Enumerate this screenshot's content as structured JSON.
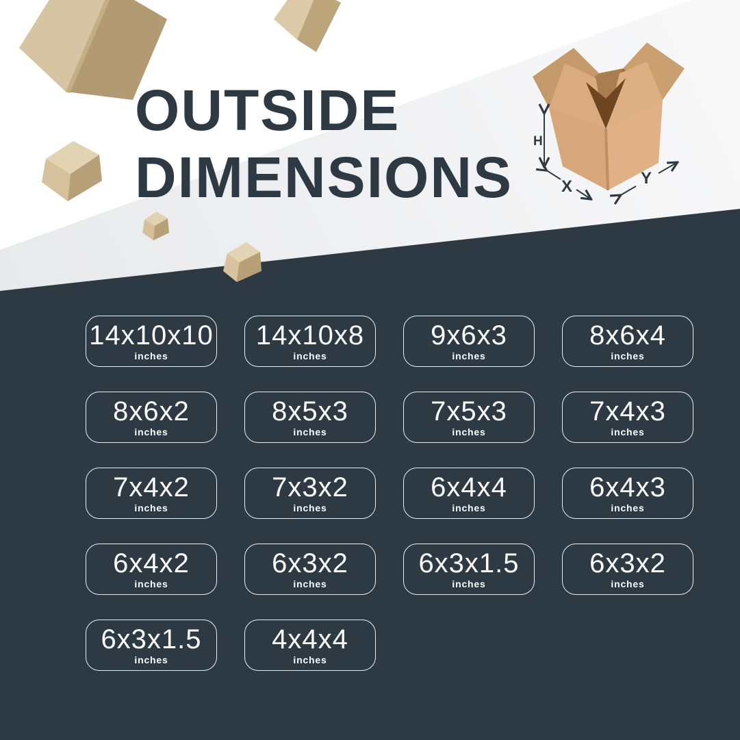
{
  "title": {
    "line1": "OUTSIDE",
    "line2": "DIMENSIONS"
  },
  "diagram": {
    "height_label": "H",
    "width_label": "X",
    "depth_label": "Y"
  },
  "sizes": [
    {
      "dims": "14x10x10",
      "unit": "inches"
    },
    {
      "dims": "14x10x8",
      "unit": "inches"
    },
    {
      "dims": "9x6x3",
      "unit": "inches"
    },
    {
      "dims": "8x6x4",
      "unit": "inches"
    },
    {
      "dims": "8x6x2",
      "unit": "inches"
    },
    {
      "dims": "8x5x3",
      "unit": "inches"
    },
    {
      "dims": "7x5x3",
      "unit": "inches"
    },
    {
      "dims": "7x4x3",
      "unit": "inches"
    },
    {
      "dims": "7x4x2",
      "unit": "inches"
    },
    {
      "dims": "7x3x2",
      "unit": "inches"
    },
    {
      "dims": "6x4x4",
      "unit": "inches"
    },
    {
      "dims": "6x4x3",
      "unit": "inches"
    },
    {
      "dims": "6x4x2",
      "unit": "inches"
    },
    {
      "dims": "6x3x2",
      "unit": "inches"
    },
    {
      "dims": "6x3x1.5",
      "unit": "inches"
    },
    {
      "dims": "6x3x2",
      "unit": "inches"
    },
    {
      "dims": "6x3x1.5",
      "unit": "inches"
    },
    {
      "dims": "4x4x4",
      "unit": "inches"
    }
  ],
  "colors": {
    "background_dark": "#2d3a43",
    "background_light": "#ffffff",
    "wedge_gray": "#e8e9eb",
    "wedge_gray_light": "#f8f8f9",
    "text_dark": "#2d3a44",
    "text_light": "#ffffff"
  }
}
